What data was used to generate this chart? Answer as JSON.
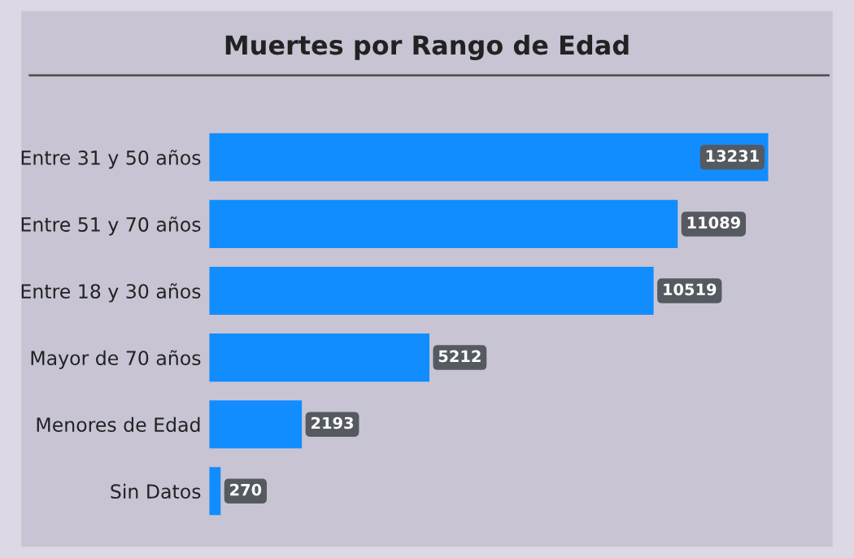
{
  "chart_data": {
    "type": "bar",
    "orientation": "horizontal",
    "title": "Muertes por Rango de Edad",
    "categories": [
      "Entre 31 y 50 años",
      "Entre 51 y 70 años",
      "Entre 18 y 30 años",
      "Mayor de 70 años",
      "Menores de Edad",
      "Sin Datos"
    ],
    "values": [
      13231,
      11089,
      10519,
      5212,
      2193,
      270
    ],
    "color": "#118dff",
    "data_labels": true,
    "grid": false,
    "legend": false
  }
}
